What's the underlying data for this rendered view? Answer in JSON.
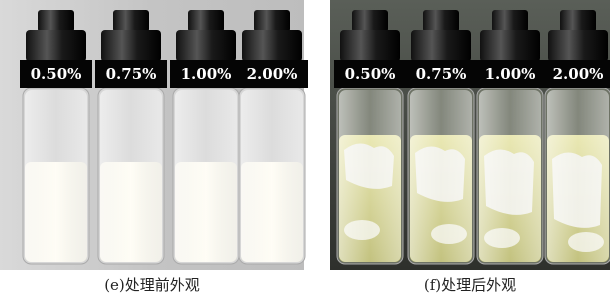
{
  "panels": [
    {
      "labels": [
        "0.50%",
        "0.75%",
        "1.00%",
        "2.00%"
      ],
      "caption": "(e)处理前外观"
    },
    {
      "labels": [
        "0.50%",
        "0.75%",
        "1.00%",
        "2.00%"
      ],
      "caption": "(f)处理后外观"
    }
  ]
}
